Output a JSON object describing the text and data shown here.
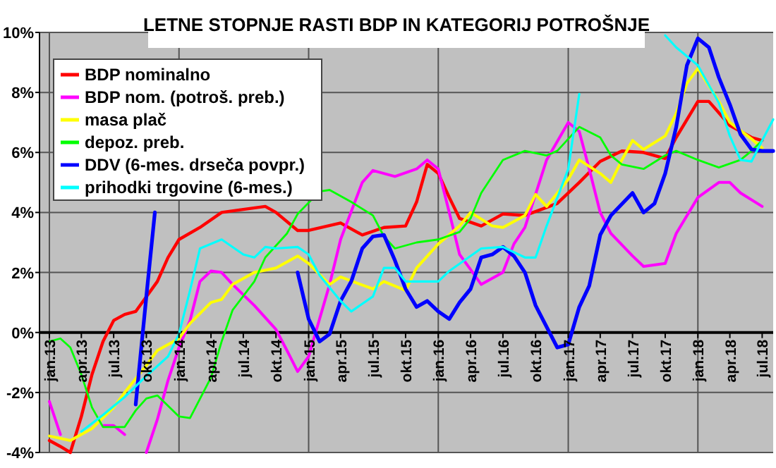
{
  "chart_data": {
    "type": "line",
    "title": "LETNE STOPNJE RASTI BDP IN KATEGORIJ POTROŠNJE",
    "xlim": [
      "2013-01",
      "2018-08"
    ],
    "xticks": [
      {
        "value": "2013-01",
        "label": "jan.13"
      },
      {
        "value": "2013-04",
        "label": "apr.13"
      },
      {
        "value": "2013-07",
        "label": "jul.13"
      },
      {
        "value": "2013-10",
        "label": "okt.13"
      },
      {
        "value": "2014-01",
        "label": "jan.14"
      },
      {
        "value": "2014-04",
        "label": "apr.14"
      },
      {
        "value": "2014-07",
        "label": "jul.14"
      },
      {
        "value": "2014-10",
        "label": "okt.14"
      },
      {
        "value": "2015-01",
        "label": "jan.15"
      },
      {
        "value": "2015-04",
        "label": "apr.15"
      },
      {
        "value": "2015-07",
        "label": "jul.15"
      },
      {
        "value": "2015-10",
        "label": "okt.15"
      },
      {
        "value": "2016-01",
        "label": "jan.16"
      },
      {
        "value": "2016-04",
        "label": "apr.16"
      },
      {
        "value": "2016-07",
        "label": "jul.16"
      },
      {
        "value": "2016-10",
        "label": "okt.16"
      },
      {
        "value": "2017-01",
        "label": "jan.17"
      },
      {
        "value": "2017-04",
        "label": "apr.17"
      },
      {
        "value": "2017-07",
        "label": "jul.17"
      },
      {
        "value": "2017-10",
        "label": "okt.17"
      },
      {
        "value": "2018-01",
        "label": "jan.18"
      },
      {
        "value": "2018-04",
        "label": "apr.18"
      },
      {
        "value": "2018-07",
        "label": "jul.18"
      }
    ],
    "ylim": [
      -4,
      10
    ],
    "yticks": [
      {
        "value": -4,
        "label": "-4%"
      },
      {
        "value": -2,
        "label": "-2%"
      },
      {
        "value": 0,
        "label": "0%"
      },
      {
        "value": 2,
        "label": "2%"
      },
      {
        "value": 4,
        "label": "4%"
      },
      {
        "value": 6,
        "label": "6%"
      },
      {
        "value": 8,
        "label": "8%"
      },
      {
        "value": 10,
        "label": "10%"
      }
    ],
    "grid": true,
    "legend": "top left",
    "marker": "none",
    "line_style": "solid",
    "series": [
      {
        "name": "BDP nominalno",
        "color": "#ff0000",
        "x": [
          "2013-01",
          "2013-02",
          "2013-03",
          "2013-04",
          "2013-05",
          "2013-06",
          "2013-07",
          "2013-08",
          "2013-09",
          "2013-11",
          "2013-12",
          "2014-01",
          "2014-03",
          "2014-05",
          "2014-07",
          "2014-09",
          "2014-10",
          "2014-12",
          "2015-01",
          "2015-04",
          "2015-06",
          "2015-08",
          "2015-10",
          "2015-11",
          "2015-12",
          "2016-01",
          "2016-02",
          "2016-03",
          "2016-05",
          "2016-07",
          "2016-09",
          "2016-12",
          "2017-02",
          "2017-04",
          "2017-06",
          "2017-08",
          "2017-10",
          "2017-11",
          "2018-01",
          "2018-02",
          "2018-04",
          "2018-06",
          "2018-07"
        ],
        "values": [
          -3.6,
          -3.8,
          -4.0,
          -2.8,
          -1.4,
          -0.3,
          0.4,
          0.6,
          0.7,
          1.7,
          2.5,
          3.1,
          3.5,
          4.0,
          4.1,
          4.2,
          4.0,
          3.4,
          3.4,
          3.65,
          3.25,
          3.5,
          3.55,
          4.35,
          5.6,
          5.3,
          4.5,
          3.8,
          3.55,
          3.95,
          3.9,
          4.3,
          5.0,
          5.7,
          6.05,
          6.0,
          5.8,
          6.5,
          7.7,
          7.7,
          6.9,
          6.5,
          6.4
        ]
      },
      {
        "name": "BDP nom. (potroš. preb.)",
        "color": "#ff00ff",
        "x": [
          "2013-01",
          "2013-02",
          "2013-03",
          "2013-04",
          "2013-05",
          "2013-06",
          "2013-07",
          "2013-08",
          "2013-09",
          "2013-10",
          "2013-11",
          "2013-12",
          "2014-01",
          "2014-02",
          "2014-03",
          "2014-04",
          "2014-05",
          "2014-06",
          "2014-08",
          "2014-10",
          "2014-11",
          "2014-12",
          "2015-01",
          "2015-03",
          "2015-04",
          "2015-06",
          "2015-07",
          "2015-09",
          "2015-11",
          "2015-12",
          "2016-01",
          "2016-02",
          "2016-03",
          "2016-04",
          "2016-05",
          "2016-07",
          "2016-08",
          "2016-09",
          "2016-11",
          "2017-01",
          "2017-02",
          "2017-03",
          "2017-04",
          "2017-05",
          "2017-07",
          "2017-08",
          "2017-10",
          "2017-11",
          "2018-01",
          "2018-03",
          "2018-04",
          "2018-05",
          "2018-07"
        ],
        "values": [
          -2.3,
          -3.4,
          null,
          null,
          null,
          -3.1,
          -3.1,
          -3.4,
          null,
          -4.0,
          -2.9,
          -1.6,
          -0.5,
          0.4,
          1.7,
          2.05,
          2.0,
          1.6,
          0.9,
          0.1,
          -0.6,
          -1.3,
          -0.8,
          1.6,
          3.1,
          5.0,
          5.4,
          5.2,
          5.45,
          5.75,
          5.45,
          4.0,
          2.6,
          2.1,
          1.6,
          2.0,
          2.95,
          3.5,
          5.75,
          7.0,
          6.7,
          5.45,
          4.0,
          3.3,
          2.55,
          2.2,
          2.3,
          3.3,
          4.5,
          5.0,
          5.0,
          4.65,
          4.2
        ]
      },
      {
        "name": "masa plač",
        "color": "#ffff00",
        "x": [
          "2013-01",
          "2013-03",
          "2013-05",
          "2013-07",
          "2013-08",
          "2013-10",
          "2013-11",
          "2014-01",
          "2014-02",
          "2014-04",
          "2014-05",
          "2014-06",
          "2014-08",
          "2014-10",
          "2014-12",
          "2015-01",
          "2015-03",
          "2015-04",
          "2015-07",
          "2015-08",
          "2015-10",
          "2015-11",
          "2016-01",
          "2016-03",
          "2016-04",
          "2016-06",
          "2016-07",
          "2016-09",
          "2016-10",
          "2016-11",
          "2017-01",
          "2017-02",
          "2017-04",
          "2017-05",
          "2017-06",
          "2017-07",
          "2017-08",
          "2017-10",
          "2017-11",
          "2017-12",
          "2018-01",
          "2018-03",
          "2018-04",
          "2018-06",
          "2018-07"
        ],
        "values": [
          -3.45,
          -3.6,
          -3.2,
          -2.5,
          -2.0,
          -1.1,
          -0.6,
          -0.2,
          0.3,
          1.0,
          1.1,
          1.6,
          2.0,
          2.15,
          2.55,
          2.3,
          1.6,
          1.85,
          1.45,
          1.7,
          1.4,
          2.15,
          2.95,
          3.55,
          4.0,
          3.55,
          3.5,
          3.9,
          4.6,
          4.2,
          5.1,
          5.75,
          5.3,
          5.0,
          5.75,
          6.4,
          6.1,
          6.55,
          7.3,
          8.3,
          8.8,
          7.7,
          7.0,
          6.45,
          6.15
        ]
      },
      {
        "name": "depoz. preb.",
        "color": "#00ff00",
        "x": [
          "2013-01",
          "2013-02",
          "2013-03",
          "2013-04",
          "2013-05",
          "2013-06",
          "2013-08",
          "2013-09",
          "2013-10",
          "2013-11",
          "2014-01",
          "2014-02",
          "2014-04",
          "2014-05",
          "2014-06",
          "2014-08",
          "2014-09",
          "2014-11",
          "2014-12",
          "2015-02",
          "2015-03",
          "2015-05",
          "2015-07",
          "2015-08",
          "2015-09",
          "2015-11",
          "2016-01",
          "2016-03",
          "2016-04",
          "2016-05",
          "2016-07",
          "2016-09",
          "2016-11",
          "2016-12",
          "2017-02",
          "2017-04",
          "2017-05",
          "2017-06",
          "2017-08",
          "2017-10",
          "2017-11",
          "2018-01",
          "2018-03",
          "2018-05",
          "2018-06",
          "2018-07"
        ],
        "values": [
          -0.3,
          -0.2,
          -0.5,
          -1.4,
          -2.5,
          -3.15,
          -3.15,
          -2.6,
          -2.2,
          -2.1,
          -2.8,
          -2.85,
          -1.5,
          -0.3,
          0.75,
          1.7,
          2.5,
          3.3,
          3.95,
          4.7,
          4.75,
          4.35,
          3.9,
          3.2,
          2.8,
          3.0,
          3.1,
          3.35,
          3.8,
          4.65,
          5.75,
          6.05,
          5.9,
          6.05,
          6.85,
          6.5,
          5.9,
          5.6,
          5.45,
          5.9,
          6.05,
          5.75,
          5.5,
          5.75,
          6.05,
          6.4
        ]
      },
      {
        "name": "DDV (6-mes. drseča povpr.)",
        "color": "#0000ff",
        "x": [
          "2013-09",
          "2013-10",
          "2013-10-25",
          "2013-12",
          "2014-01",
          "2014-08",
          "2014-09",
          "2014-10",
          "2014-11",
          "2014-12",
          "2015-01",
          "2015-02",
          "2015-03",
          "2015-04",
          "2015-05",
          "2015-06",
          "2015-07",
          "2015-08",
          "2015-09",
          "2015-10",
          "2015-11",
          "2015-12",
          "2016-01",
          "2016-02",
          "2016-03",
          "2016-04",
          "2016-05",
          "2016-06",
          "2016-07",
          "2016-08",
          "2016-09",
          "2016-10",
          "2016-12",
          "2017-01",
          "2017-02",
          "2017-03",
          "2017-04",
          "2017-05",
          "2017-07",
          "2017-08",
          "2017-09",
          "2017-10",
          "2017-11",
          "2017-12",
          "2018-01",
          "2018-02",
          "2018-03",
          "2018-04",
          "2018-05",
          "2018-06",
          "2018-07",
          "2018-08"
        ],
        "values": [
          -2.4,
          1.2,
          4.0,
          null,
          null,
          null,
          null,
          null,
          null,
          2.0,
          0.45,
          -0.3,
          -0.05,
          1.05,
          1.7,
          2.8,
          3.2,
          3.25,
          2.4,
          1.45,
          0.85,
          1.05,
          0.7,
          0.45,
          1.0,
          1.45,
          2.5,
          2.6,
          2.85,
          2.55,
          2.0,
          0.9,
          -0.5,
          -0.4,
          0.85,
          1.55,
          3.25,
          3.9,
          4.65,
          4.0,
          4.3,
          5.3,
          6.85,
          8.9,
          9.8,
          9.5,
          8.5,
          7.6,
          6.6,
          6.1,
          6.05,
          6.05
        ]
      },
      {
        "name": "prihodki trgovine (6-mes.)",
        "color": "#00ffff",
        "x": [
          "2013-04",
          "2013-06",
          "2013-08",
          "2013-10",
          "2013-12",
          "2014-01",
          "2014-02",
          "2014-03",
          "2014-05",
          "2014-07",
          "2014-08",
          "2014-09",
          "2014-10",
          "2014-12",
          "2015-01",
          "2015-02",
          "2015-04",
          "2015-05",
          "2015-07",
          "2015-08",
          "2015-09",
          "2015-10",
          "2016-01",
          "2016-02",
          "2016-05",
          "2016-07",
          "2016-09",
          "2016-10",
          "2016-11",
          "2017-01",
          "2017-02",
          "2017-03",
          "2017-10",
          "2017-11",
          "2018-01",
          "2018-03",
          "2018-04",
          "2018-05",
          "2018-06",
          "2018-07",
          "2018-08"
        ],
        "values": [
          -3.3,
          -2.75,
          -2.15,
          -1.45,
          -0.8,
          -0.05,
          1.4,
          2.8,
          3.1,
          2.6,
          2.5,
          2.85,
          2.8,
          2.85,
          2.6,
          1.9,
          1.05,
          0.7,
          1.2,
          2.15,
          2.15,
          1.7,
          1.7,
          2.05,
          2.8,
          2.85,
          2.5,
          2.5,
          3.55,
          5.45,
          7.95,
          null,
          9.9,
          9.5,
          8.9,
          7.65,
          6.55,
          5.75,
          5.7,
          6.4,
          7.1
        ]
      }
    ]
  }
}
